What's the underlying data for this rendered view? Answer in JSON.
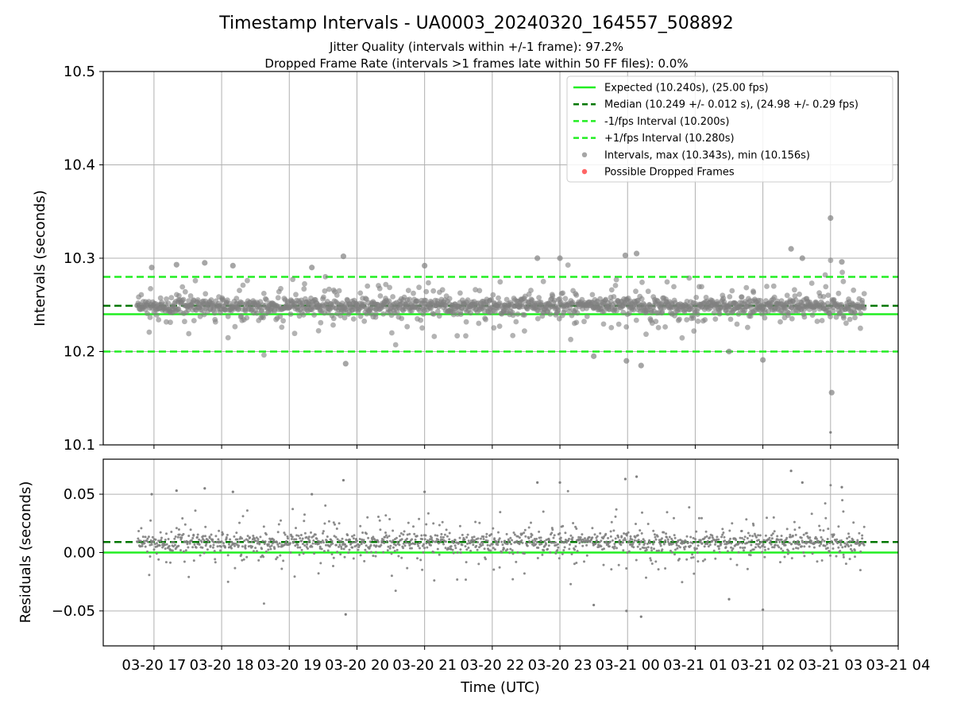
{
  "figure": {
    "title": "Timestamp Intervals - UA0003_20240320_164557_508892",
    "subtitle_1": "Jitter Quality (intervals within +/-1 frame): 97.2%",
    "subtitle_2": "Dropped Frame Rate (intervals >1 frames late within 50 FF files): 0.0%",
    "xlabel": "Time (UTC)"
  },
  "colors": {
    "expected": "#22ee22",
    "median": "#007700",
    "fps_interval": "#22ee22",
    "points": "#808080",
    "dropped": "#ff6666",
    "grid": "#b0b0b0"
  },
  "chart_data": [
    {
      "type": "scatter",
      "name": "intervals",
      "ylabel": "Intervals (seconds)",
      "ylim": [
        10.1,
        10.5
      ],
      "yticks": [
        "10.1",
        "10.2",
        "10.3",
        "10.4",
        "10.5"
      ],
      "xlim": [
        "03-20 16:15",
        "03-21 04:00"
      ],
      "xticks": [
        "03-20 17",
        "03-20 18",
        "03-20 19",
        "03-20 20",
        "03-20 21",
        "03-20 22",
        "03-20 23",
        "03-21 00",
        "03-21 01",
        "03-21 02",
        "03-21 03",
        "03-21 04"
      ],
      "grid": true,
      "legend_position": "top-right",
      "legend": [
        {
          "label": "Expected (10.240s), (25.00 fps)",
          "style": "solid-line"
        },
        {
          "label": "Median (10.249 +/- 0.012 s), (24.98 +/- 0.29 fps)",
          "style": "dashed-dark"
        },
        {
          "label": "-1/fps Interval (10.200s)",
          "style": "dashed-light"
        },
        {
          "label": "+1/fps Interval (10.280s)",
          "style": "dashed-light"
        },
        {
          "label": "Intervals, max (10.343s), min (10.156s)",
          "style": "gray-dot"
        },
        {
          "label": "Possible Dropped Frames",
          "style": "red-dot"
        }
      ],
      "reference_lines": {
        "expected": 10.24,
        "median": 10.249,
        "minus_one_fps": 10.2,
        "plus_one_fps": 10.28
      },
      "time_range": [
        "03-20 16:45",
        "03-21 03:30"
      ],
      "max_interval": 10.343,
      "min_interval": 10.156,
      "outliers": [
        {
          "t": "03-20 16:58",
          "y": 10.29
        },
        {
          "t": "03-20 17:20",
          "y": 10.293
        },
        {
          "t": "03-20 17:45",
          "y": 10.295
        },
        {
          "t": "03-20 18:10",
          "y": 10.292
        },
        {
          "t": "03-20 19:20",
          "y": 10.29
        },
        {
          "t": "03-20 19:48",
          "y": 10.302
        },
        {
          "t": "03-20 19:50",
          "y": 10.187
        },
        {
          "t": "03-20 21:00",
          "y": 10.292
        },
        {
          "t": "03-20 22:40",
          "y": 10.3
        },
        {
          "t": "03-20 23:00",
          "y": 10.3
        },
        {
          "t": "03-20 23:30",
          "y": 10.195
        },
        {
          "t": "03-20 23:58",
          "y": 10.303
        },
        {
          "t": "03-21 00:08",
          "y": 10.305
        },
        {
          "t": "03-21 00:12",
          "y": 10.185
        },
        {
          "t": "03-20 23:59",
          "y": 10.19
        },
        {
          "t": "03-21 01:30",
          "y": 10.2
        },
        {
          "t": "03-21 02:00",
          "y": 10.191
        },
        {
          "t": "03-21 02:25",
          "y": 10.31
        },
        {
          "t": "03-21 02:35",
          "y": 10.3
        },
        {
          "t": "03-21 03:00",
          "y": 10.343
        },
        {
          "t": "03-21 03:01",
          "y": 10.156
        },
        {
          "t": "03-21 03:10",
          "y": 10.296
        }
      ]
    },
    {
      "type": "scatter",
      "name": "residuals",
      "ylabel": "Residuals (seconds)",
      "ylim": [
        -0.08,
        0.08
      ],
      "yticks": [
        "−0.05",
        "0.00",
        "0.05"
      ],
      "grid": true,
      "reference_lines": {
        "zero": 0.0,
        "median_offset": 0.009
      }
    }
  ]
}
